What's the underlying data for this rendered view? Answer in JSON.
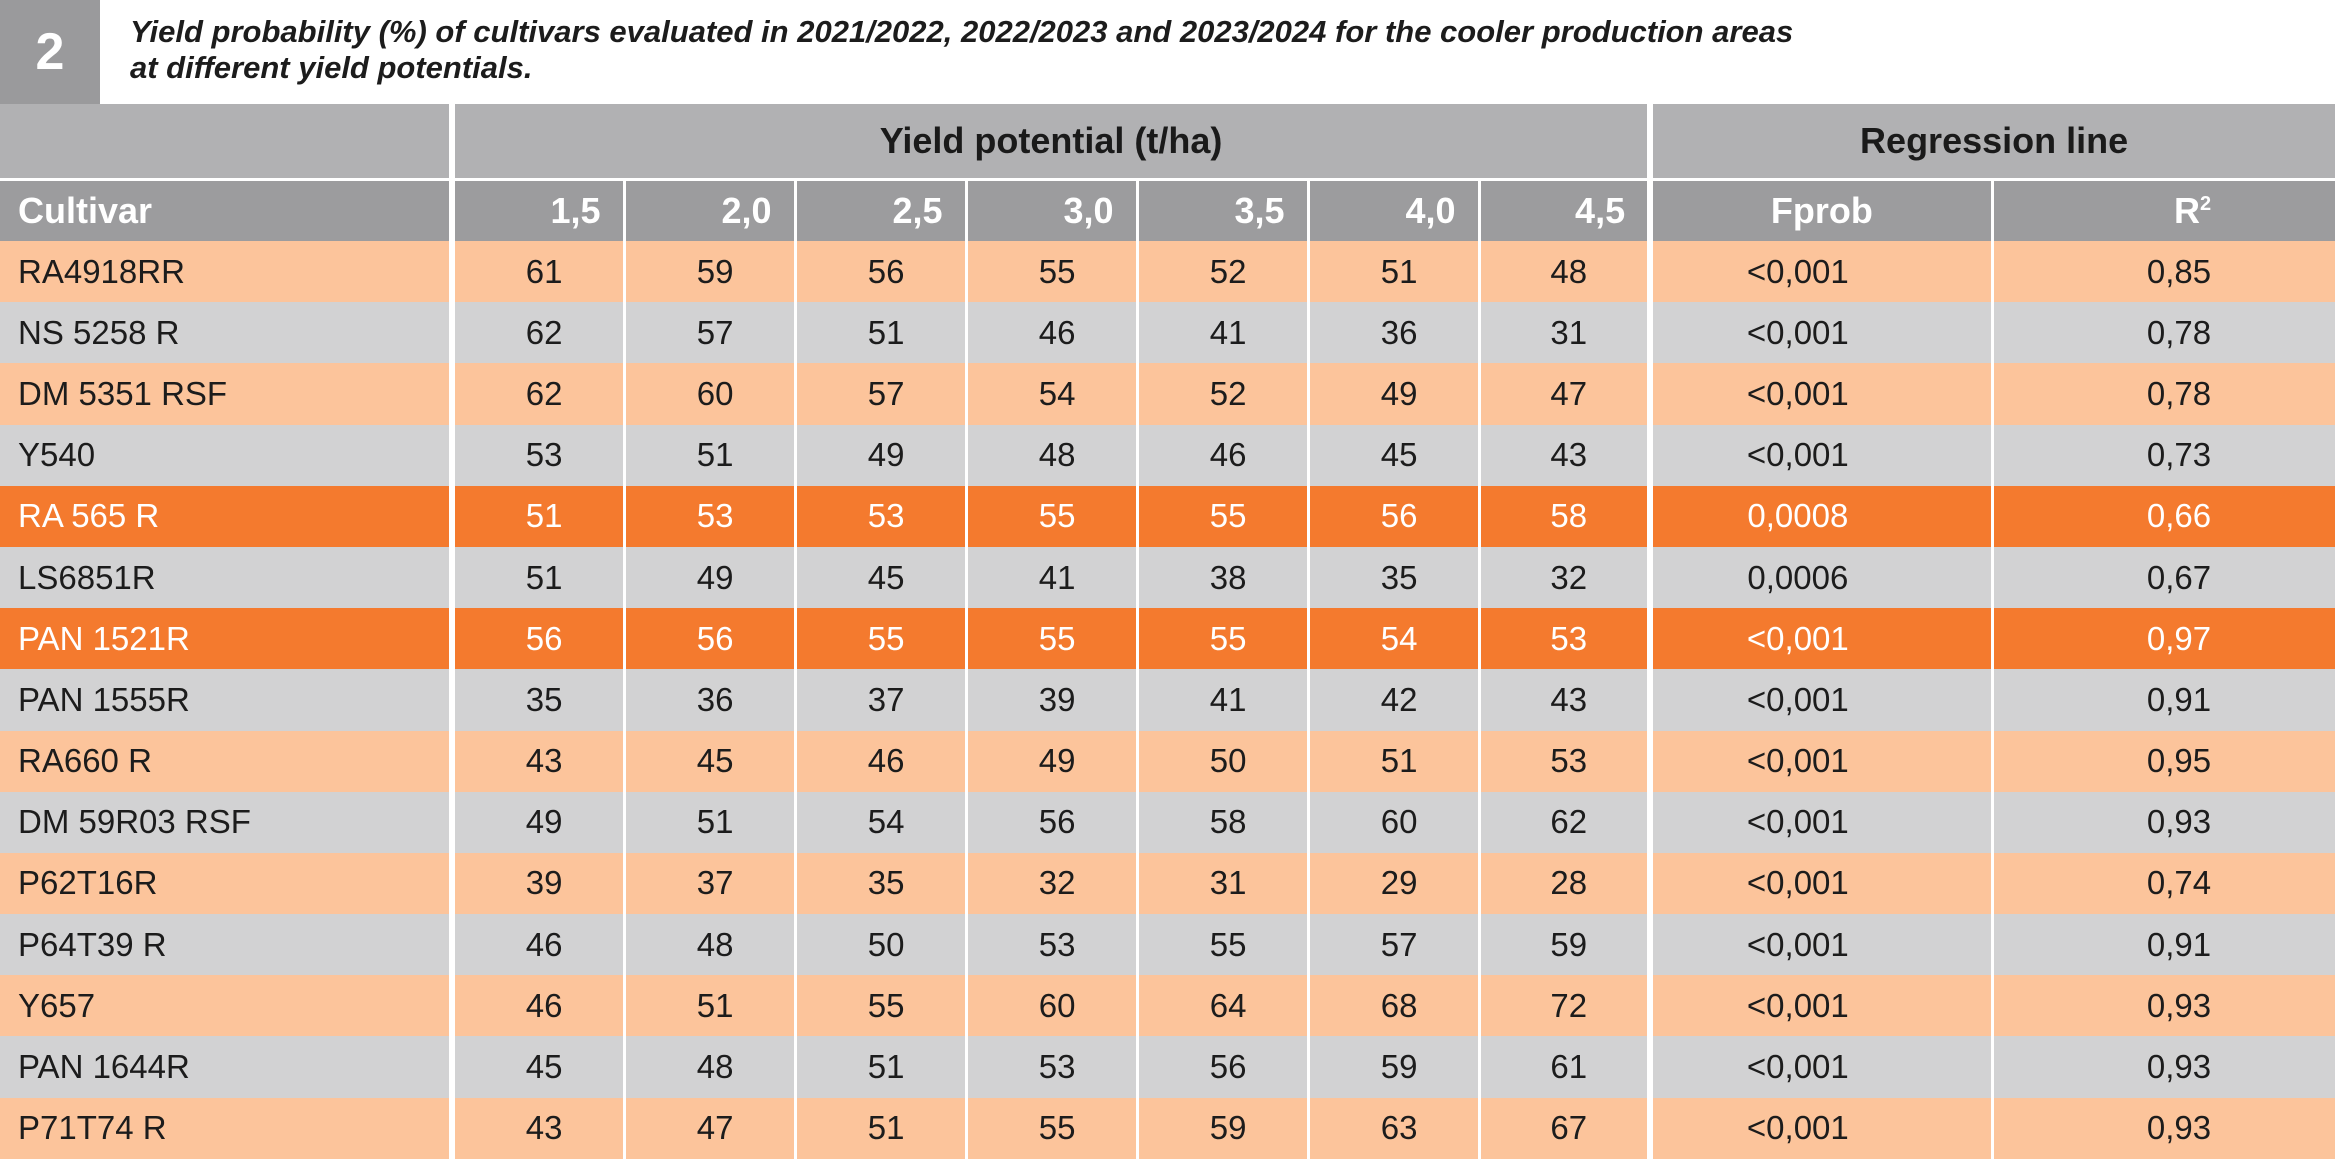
{
  "table_number": "2",
  "caption_line1": "Yield probability (%) of cultivars evaluated in 2021/2022, 2022/2023 and 2023/2024 for the cooler production areas",
  "caption_line2": "at different yield potentials.",
  "header": {
    "group_yield": "Yield potential (t/ha)",
    "group_regression": "Regression line",
    "cultivar": "Cultivar",
    "potentials": [
      "1,5",
      "2,0",
      "2,5",
      "3,0",
      "3,5",
      "4,0",
      "4,5"
    ],
    "fprob": "Fprob",
    "r2_base": "R",
    "r2_sup": "2"
  },
  "colors": {
    "peach": "#fcc49b",
    "grey": "#d2d2d3",
    "highlight": "#f47a2e",
    "header_dark": "#9c9c9e",
    "header_light": "#b1b1b3"
  },
  "rows": [
    {
      "cultivar": "RA4918RR",
      "values": [
        "61",
        "59",
        "56",
        "55",
        "52",
        "51",
        "48"
      ],
      "fprob": "<0,001",
      "r2": "0,85",
      "style": "peach"
    },
    {
      "cultivar": "NS 5258 R",
      "values": [
        "62",
        "57",
        "51",
        "46",
        "41",
        "36",
        "31"
      ],
      "fprob": "<0,001",
      "r2": "0,78",
      "style": "grey"
    },
    {
      "cultivar": "DM 5351 RSF",
      "values": [
        "62",
        "60",
        "57",
        "54",
        "52",
        "49",
        "47"
      ],
      "fprob": "<0,001",
      "r2": "0,78",
      "style": "peach"
    },
    {
      "cultivar": "Y540",
      "values": [
        "53",
        "51",
        "49",
        "48",
        "46",
        "45",
        "43"
      ],
      "fprob": "<0,001",
      "r2": "0,73",
      "style": "grey"
    },
    {
      "cultivar": "RA 565 R",
      "values": [
        "51",
        "53",
        "53",
        "55",
        "55",
        "56",
        "58"
      ],
      "fprob": "0,0008",
      "r2": "0,66",
      "style": "hl"
    },
    {
      "cultivar": "LS6851R",
      "values": [
        "51",
        "49",
        "45",
        "41",
        "38",
        "35",
        "32"
      ],
      "fprob": "0,0006",
      "r2": "0,67",
      "style": "grey"
    },
    {
      "cultivar": "PAN 1521R",
      "values": [
        "56",
        "56",
        "55",
        "55",
        "55",
        "54",
        "53"
      ],
      "fprob": "<0,001",
      "r2": "0,97",
      "style": "hl"
    },
    {
      "cultivar": "PAN 1555R",
      "values": [
        "35",
        "36",
        "37",
        "39",
        "41",
        "42",
        "43"
      ],
      "fprob": "<0,001",
      "r2": "0,91",
      "style": "grey"
    },
    {
      "cultivar": "RA660 R",
      "values": [
        "43",
        "45",
        "46",
        "49",
        "50",
        "51",
        "53"
      ],
      "fprob": "<0,001",
      "r2": "0,95",
      "style": "peach"
    },
    {
      "cultivar": "DM 59R03 RSF",
      "values": [
        "49",
        "51",
        "54",
        "56",
        "58",
        "60",
        "62"
      ],
      "fprob": "<0,001",
      "r2": "0,93",
      "style": "grey"
    },
    {
      "cultivar": "P62T16R",
      "values": [
        "39",
        "37",
        "35",
        "32",
        "31",
        "29",
        "28"
      ],
      "fprob": "<0,001",
      "r2": "0,74",
      "style": "peach"
    },
    {
      "cultivar": "P64T39 R",
      "values": [
        "46",
        "48",
        "50",
        "53",
        "55",
        "57",
        "59"
      ],
      "fprob": "<0,001",
      "r2": "0,91",
      "style": "grey"
    },
    {
      "cultivar": "Y657",
      "values": [
        "46",
        "51",
        "55",
        "60",
        "64",
        "68",
        "72"
      ],
      "fprob": "<0,001",
      "r2": "0,93",
      "style": "peach"
    },
    {
      "cultivar": "PAN 1644R",
      "values": [
        "45",
        "48",
        "51",
        "53",
        "56",
        "59",
        "61"
      ],
      "fprob": "<0,001",
      "r2": "0,93",
      "style": "grey"
    },
    {
      "cultivar": "P71T74 R",
      "values": [
        "43",
        "47",
        "51",
        "55",
        "59",
        "63",
        "67"
      ],
      "fprob": "<0,001",
      "r2": "0,93",
      "style": "peach"
    }
  ]
}
